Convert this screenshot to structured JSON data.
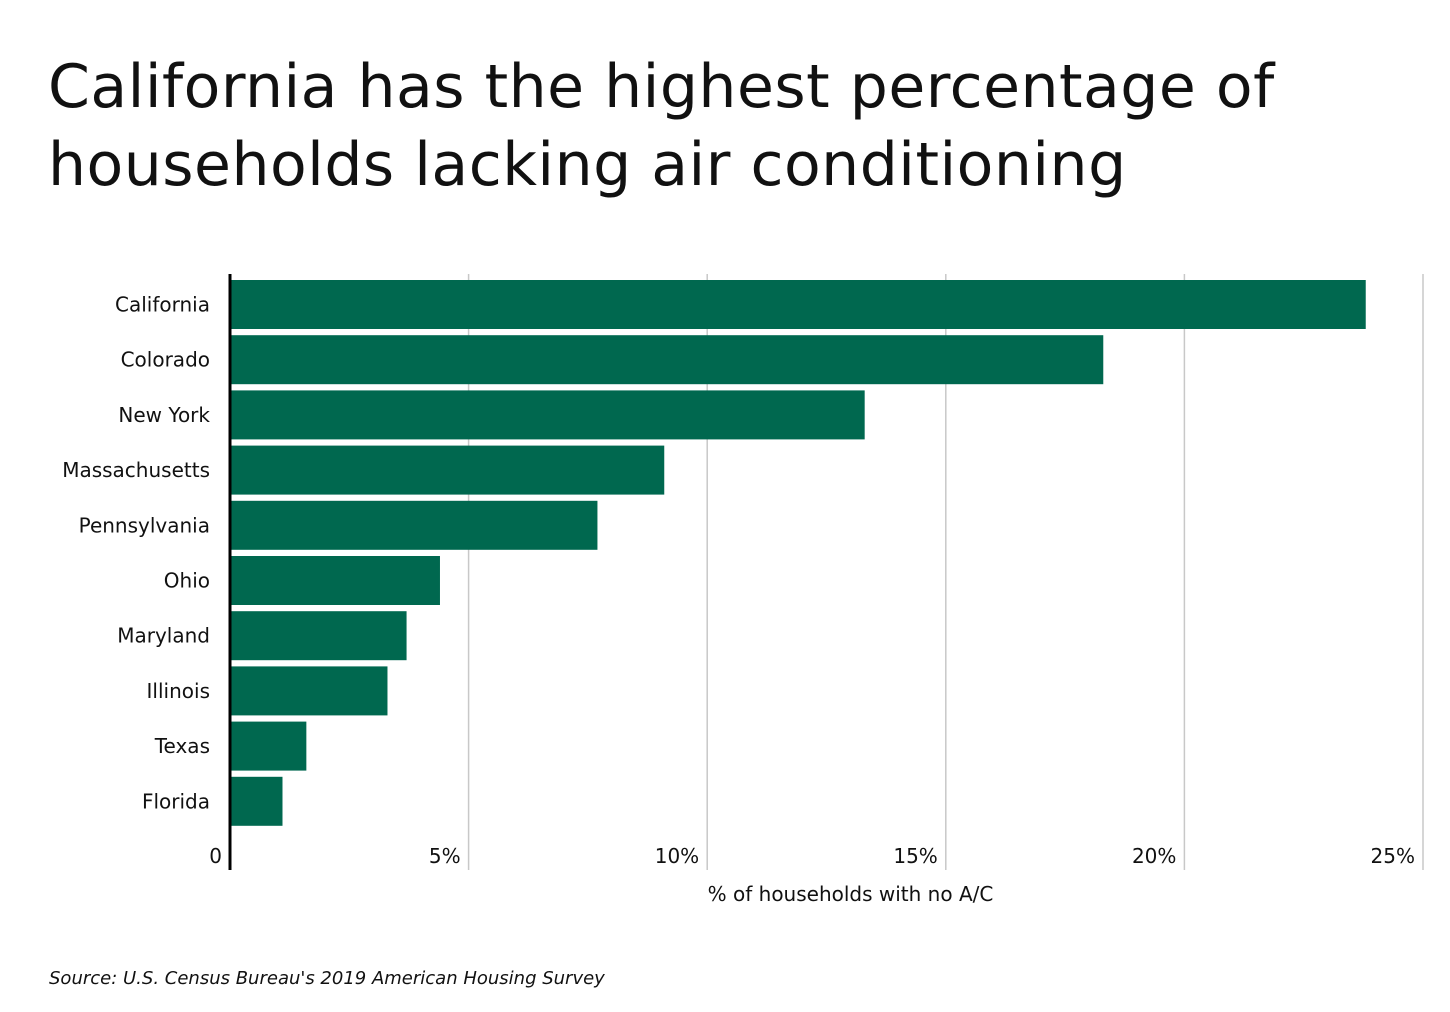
{
  "title": "California has the highest percentage of households lacking air conditioning",
  "source": "Source:  U.S. Census Bureau's 2019 American Housing Survey",
  "colors": {
    "bar": "#00684f",
    "grid": "#c8c8c8",
    "axis": "#000000"
  },
  "chart_data": {
    "type": "bar",
    "orientation": "horizontal",
    "categories": [
      "California",
      "Colorado",
      "New York",
      "Massachusetts",
      "Pennsylvania",
      "Ohio",
      "Maryland",
      "Illinois",
      "Texas",
      "Florida"
    ],
    "values": [
      23.8,
      18.3,
      13.3,
      9.1,
      7.7,
      4.4,
      3.7,
      3.3,
      1.6,
      1.1
    ],
    "xlabel": "% of households with no A/C",
    "ylabel": "",
    "xlim": [
      0,
      25
    ],
    "xticks": [
      0,
      5,
      10,
      15,
      20,
      25
    ],
    "xtick_labels": [
      "0",
      "5%",
      "10%",
      "15%",
      "20%",
      "25%"
    ],
    "grid": "vertical",
    "legend": "none"
  }
}
